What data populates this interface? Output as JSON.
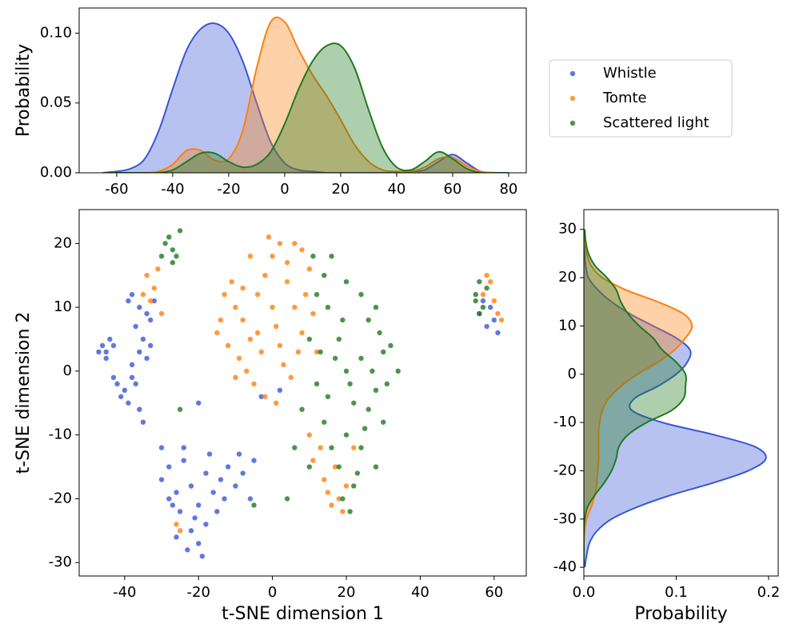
{
  "chart_data": [
    {
      "type": "area",
      "orientation": "vertical",
      "ylabel": "Probability",
      "xlim": [
        -73.4,
        86.3
      ],
      "ylim": [
        0,
        0.118
      ],
      "xticks": [
        -60,
        -40,
        -20,
        0,
        20,
        40,
        60,
        80
      ],
      "yticks": [
        {
          "value": 0,
          "label": "0.00"
        },
        {
          "value": 0.05,
          "label": "0.05"
        },
        {
          "value": 0.1,
          "label": "0.10"
        }
      ],
      "x": [
        -65,
        -60,
        -55,
        -50,
        -45,
        -40,
        -35,
        -30,
        -25,
        -20,
        -15,
        -10,
        -5,
        0,
        5,
        10,
        15,
        20,
        25,
        30,
        35,
        40,
        45,
        50,
        55,
        60,
        65,
        70,
        75,
        80
      ],
      "series": [
        {
          "color": "#3a56d6",
          "values": [
            0,
            0.001,
            0.003,
            0.01,
            0.03,
            0.06,
            0.088,
            0.103,
            0.107,
            0.1,
            0.08,
            0.05,
            0.022,
            0.007,
            0.002,
            0.001,
            0,
            0,
            0,
            0,
            0,
            0,
            0.001,
            0.002,
            0.008,
            0.013,
            0.007,
            0.001,
            0,
            0
          ]
        },
        {
          "color": "#ff7f0e",
          "values": [
            0,
            0,
            0,
            0,
            0.001,
            0.006,
            0.016,
            0.016,
            0.009,
            0.01,
            0.03,
            0.075,
            0.108,
            0.108,
            0.088,
            0.07,
            0.055,
            0.038,
            0.02,
            0.008,
            0.002,
            0.001,
            0.001,
            0.004,
            0.01,
            0.011,
            0.005,
            0.001,
            0,
            0
          ]
        },
        {
          "color": "#1e7b1e",
          "values": [
            0,
            0,
            0,
            0,
            0,
            0.002,
            0.008,
            0.014,
            0.014,
            0.008,
            0.004,
            0.006,
            0.015,
            0.035,
            0.06,
            0.08,
            0.091,
            0.091,
            0.075,
            0.045,
            0.018,
            0.004,
            0.002,
            0.008,
            0.015,
            0.01,
            0.003,
            0,
            0,
            0
          ]
        }
      ]
    },
    {
      "type": "scatter",
      "xlabel": "t-SNE dimension 1",
      "ylabel": "t-SNE dimension 2",
      "xlim": [
        -52.3,
        68.7
      ],
      "ylim": [
        -32.1,
        25.3
      ],
      "xticks": [
        -40,
        -20,
        0,
        20,
        40,
        60
      ],
      "yticks": [
        -30,
        -20,
        -10,
        0,
        10,
        20
      ],
      "legend": "upper right",
      "series": [
        {
          "name": "Whistle",
          "color": "#3a56d6",
          "x": [
            -46,
            -45,
            -44,
            -47,
            -45,
            -43,
            -42,
            -40,
            -38,
            -41,
            -39,
            -37,
            -36,
            -35,
            -43,
            -38,
            -36,
            -34,
            -37,
            -35,
            -33,
            -32,
            -36,
            -34,
            -38,
            -39,
            -33,
            -30,
            -28,
            -26,
            -24,
            -22,
            -20,
            -18,
            -16,
            -14,
            -12,
            -10,
            -8,
            -6,
            -5,
            -25,
            -22,
            -20,
            -18,
            -23,
            -19,
            -24,
            -17,
            -28,
            -21,
            -15,
            -26,
            -13,
            -9,
            -30,
            -27,
            56,
            58,
            60,
            61,
            59,
            57,
            -20,
            -3,
            2
          ],
          "values": [
            4,
            3,
            5,
            3,
            2,
            4,
            -2,
            -3,
            -1,
            -4,
            -5,
            -2,
            -6,
            -8,
            -1,
            12,
            10,
            9,
            7,
            5,
            8,
            11,
            3,
            2,
            1,
            11,
            4,
            -17,
            -15,
            -19,
            -14,
            -18,
            -21,
            -16,
            -19,
            -17,
            -15,
            -18,
            -16,
            -20,
            -14,
            -22,
            -25,
            -27,
            -24,
            -28,
            -29,
            -12,
            -13,
            -20,
            -23,
            -22,
            -26,
            -20,
            -13,
            -12,
            -21,
            9,
            7,
            8,
            6,
            10,
            11,
            -5,
            -4,
            -3
          ]
        },
        {
          "name": "Tomte",
          "color": "#ff7f0e",
          "x": [
            -34,
            -32,
            -33,
            -31,
            -35,
            -30,
            -10,
            -8,
            -6,
            -4,
            -2,
            0,
            2,
            4,
            6,
            8,
            -12,
            -14,
            -9,
            -7,
            -5,
            -3,
            1,
            3,
            5,
            7,
            9,
            10,
            -1,
            -6,
            -11,
            -13,
            0,
            2,
            -4,
            -8,
            4,
            6,
            11,
            -2,
            1,
            12,
            -15,
            8,
            -10,
            16,
            18,
            14,
            17,
            20,
            13,
            11,
            19,
            15,
            10,
            22,
            57,
            59,
            60,
            58,
            61,
            62,
            -26,
            -25
          ],
          "values": [
            15,
            13,
            11,
            16,
            12,
            9,
            10,
            8,
            5,
            12,
            15,
            18,
            20,
            14,
            10,
            6,
            4,
            8,
            2,
            0,
            -2,
            3,
            7,
            1,
            -1,
            3,
            12,
            16,
            21,
            18,
            14,
            12,
            10,
            4,
            6,
            13,
            17,
            20,
            9,
            -4,
            -5,
            3,
            6,
            19,
            -1,
            -21,
            -20,
            -17,
            -15,
            -18,
            -12,
            -14,
            -22,
            -19,
            -10,
            -12,
            12,
            14,
            11,
            15,
            9,
            8,
            -24,
            -25
          ]
        },
        {
          "name": "Scattered light",
          "color": "#1e7b1e",
          "x": [
            -28,
            -27,
            -29,
            -26,
            -25,
            -30,
            -27,
            15,
            18,
            20,
            22,
            24,
            26,
            28,
            30,
            12,
            14,
            16,
            18,
            20,
            22,
            24,
            26,
            10,
            12,
            14,
            16,
            20,
            24,
            28,
            32,
            34,
            30,
            28,
            8,
            6,
            10,
            4,
            19,
            21,
            23,
            17,
            19,
            21,
            25,
            27,
            13,
            11,
            29,
            31,
            15,
            55,
            56,
            57,
            58,
            55,
            56,
            -5,
            -25
          ],
          "values": [
            21,
            19,
            20,
            18,
            22,
            18,
            17,
            10,
            5,
            0,
            -5,
            2,
            8,
            -3,
            3,
            -2,
            -8,
            -12,
            -15,
            -10,
            -18,
            -12,
            -6,
            5,
            12,
            15,
            18,
            14,
            12,
            10,
            4,
            0,
            -8,
            -15,
            -6,
            -12,
            -15,
            -20,
            -20,
            -22,
            -16,
            2,
            8,
            -2,
            -9,
            0,
            3,
            18,
            6,
            -2,
            -4,
            12,
            14,
            10,
            13,
            11,
            9,
            -21,
            -6
          ]
        }
      ]
    },
    {
      "type": "area",
      "orientation": "horizontal",
      "xlabel": "Probability",
      "xlim": [
        0,
        0.2104
      ],
      "ylim": [
        -41.8,
        34.1
      ],
      "xticks": [
        {
          "value": 0,
          "label": "0.0"
        },
        {
          "value": 0.1,
          "label": "0.1"
        },
        {
          "value": 0.2,
          "label": "0.2"
        }
      ],
      "yticks": [
        -40,
        -30,
        -20,
        -10,
        0,
        10,
        20,
        30
      ],
      "y": [
        -40,
        -37.5,
        -35,
        -32.5,
        -30,
        -27.5,
        -25,
        -22.5,
        -20,
        -17.5,
        -15,
        -12.5,
        -10,
        -7.5,
        -5,
        -2.5,
        0,
        2.5,
        5,
        7.5,
        10,
        12.5,
        15,
        17.5,
        20,
        22.5,
        25,
        27.5,
        30
      ],
      "series": [
        {
          "color": "#3a56d6",
          "values": [
            0.001,
            0.003,
            0.006,
            0.014,
            0.03,
            0.058,
            0.095,
            0.14,
            0.178,
            0.197,
            0.185,
            0.14,
            0.085,
            0.052,
            0.055,
            0.08,
            0.1,
            0.112,
            0.115,
            0.1,
            0.075,
            0.05,
            0.03,
            0.015,
            0.005,
            0.002,
            0.001,
            0,
            0
          ]
        },
        {
          "color": "#ff7f0e",
          "values": [
            0,
            0,
            0,
            0.001,
            0.003,
            0.008,
            0.012,
            0.014,
            0.015,
            0.016,
            0.016,
            0.016,
            0.017,
            0.02,
            0.027,
            0.04,
            0.058,
            0.08,
            0.098,
            0.11,
            0.117,
            0.108,
            0.08,
            0.045,
            0.02,
            0.008,
            0.003,
            0.001,
            0
          ]
        },
        {
          "color": "#1e7b1e",
          "values": [
            0,
            0,
            0,
            0,
            0.001,
            0.004,
            0.012,
            0.022,
            0.03,
            0.035,
            0.038,
            0.048,
            0.068,
            0.095,
            0.108,
            0.11,
            0.11,
            0.1,
            0.085,
            0.075,
            0.06,
            0.048,
            0.04,
            0.035,
            0.025,
            0.012,
            0.005,
            0.002,
            0.001
          ]
        }
      ]
    }
  ]
}
